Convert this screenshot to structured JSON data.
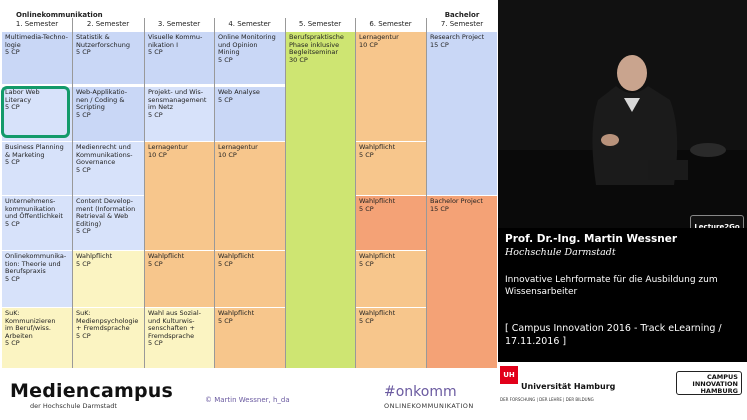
{
  "slide": {
    "program_label": "Onlinekommunikation",
    "bachelor_label": "Bachelor",
    "semesters": [
      "1. Semester",
      "2. Semester",
      "3. Semester",
      "4. Semester",
      "5. Semester",
      "6. Semester",
      "7. Semester"
    ],
    "modules": {
      "c1": [
        "Multimedia-Techno-\nlogie\n5 CP",
        "Labor Web\nLiteracy\n5 CP",
        "Business Planning\n& Marketing\n5 CP",
        "Unternehmens-\nkommunikation\nund Öffentlichkeit\n5 CP",
        "Onlinekommunika-\ntion: Theorie und\nBerufspraxis\n5 CP",
        "SuK:\nKommunizieren\nim Beruf/wiss.\nArbeiten\n5 CP"
      ],
      "c2": [
        "Statistik &\nNutzerforschung\n5 CP",
        "Web-Applikatio-\nnen / Coding &\nScripting\n5 CP",
        "Medienrecht und\nKommunikations-\nGovernance\n5 CP",
        "Content Develop-\nment (Information\nRetrieval & Web\nEditing)\n5 CP",
        "Wahlpflicht\n5 CP",
        "SuK:\nMedienpsychologie\n+ Fremdsprache\n5 CP"
      ],
      "c3": [
        "Visuelle Kommu-\nnikation I\n5 CP",
        "Projekt- und Wis-\nsensmanagement\nim Netz\n5 CP",
        "Lernagentur\n10 CP",
        "Wahlpflicht\n5 CP",
        "Wahl aus Sozial-\nund Kulturwis-\nsenschaften +\nFremdsprache\n5 CP"
      ],
      "c4": [
        "Online Monitoring\nund Opinion\nMining\n5 CP",
        "Web Analyse\n5 CP",
        "Lernagentur\n10 CP",
        "Wahlpflicht\n5 CP",
        "Wahlpflicht\n5 CP"
      ],
      "c5": [
        "Berufspraktische\nPhase inklusive\nBegleitseminar\n30 CP"
      ],
      "c6": [
        "Lernagentur\n10 CP",
        "Wahlpflicht\n5 CP",
        "Wahlpflicht\n5 CP",
        "Wahlpflicht\n5 CP",
        "Wahlpflicht\n5 CP"
      ],
      "c7": [
        "Research Project\n15 CP",
        "Bachelor Project\n15 CP"
      ]
    },
    "footer": {
      "logo": "Mediencampus",
      "logo_sub": "der Hochschule Darmstadt",
      "copyright": "© Martin Wessner, h_da",
      "hashtag": "#onkomm",
      "hashtag_sub": "ONLINEKOMMUNIKATION"
    }
  },
  "sidebar": {
    "lecture_logo": "Lecture2Go",
    "speaker_name": "Prof. Dr.-Ing. Martin Wessner",
    "affiliation": "Hochschule Darmstadt",
    "talk_title": "Innovative Lehrformate für die Ausbildung zum Wissensarbeiter",
    "event": "[ Campus Innovation 2016 - Track eLearning / 17.11.2016 ]",
    "uh_mark": "UH",
    "uh_name": "Universität Hamburg",
    "uh_sub": "DER FORSCHUNG | DER LEHRE | DER BILDUNG",
    "ci_logo": "CAMPUS\nINNOVATION\nHAMBURG"
  }
}
